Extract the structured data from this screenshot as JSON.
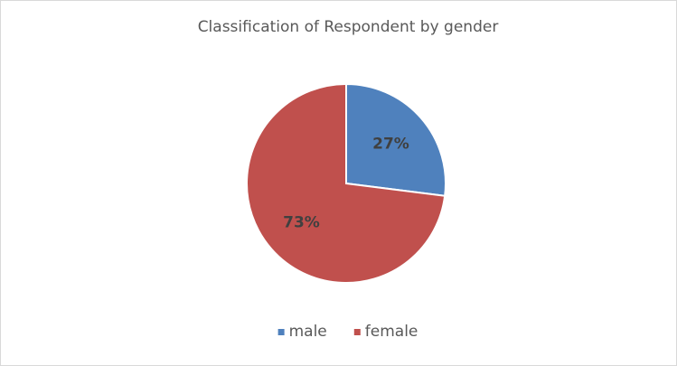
{
  "chart_data": {
    "type": "pie",
    "title": "Classification of Respondent by gender",
    "categories": [
      "male",
      "female"
    ],
    "values": [
      27,
      73
    ],
    "value_labels": [
      "27%",
      "73%"
    ],
    "colors": [
      "#4f81bd",
      "#c0504d"
    ],
    "legend": "bottom"
  }
}
